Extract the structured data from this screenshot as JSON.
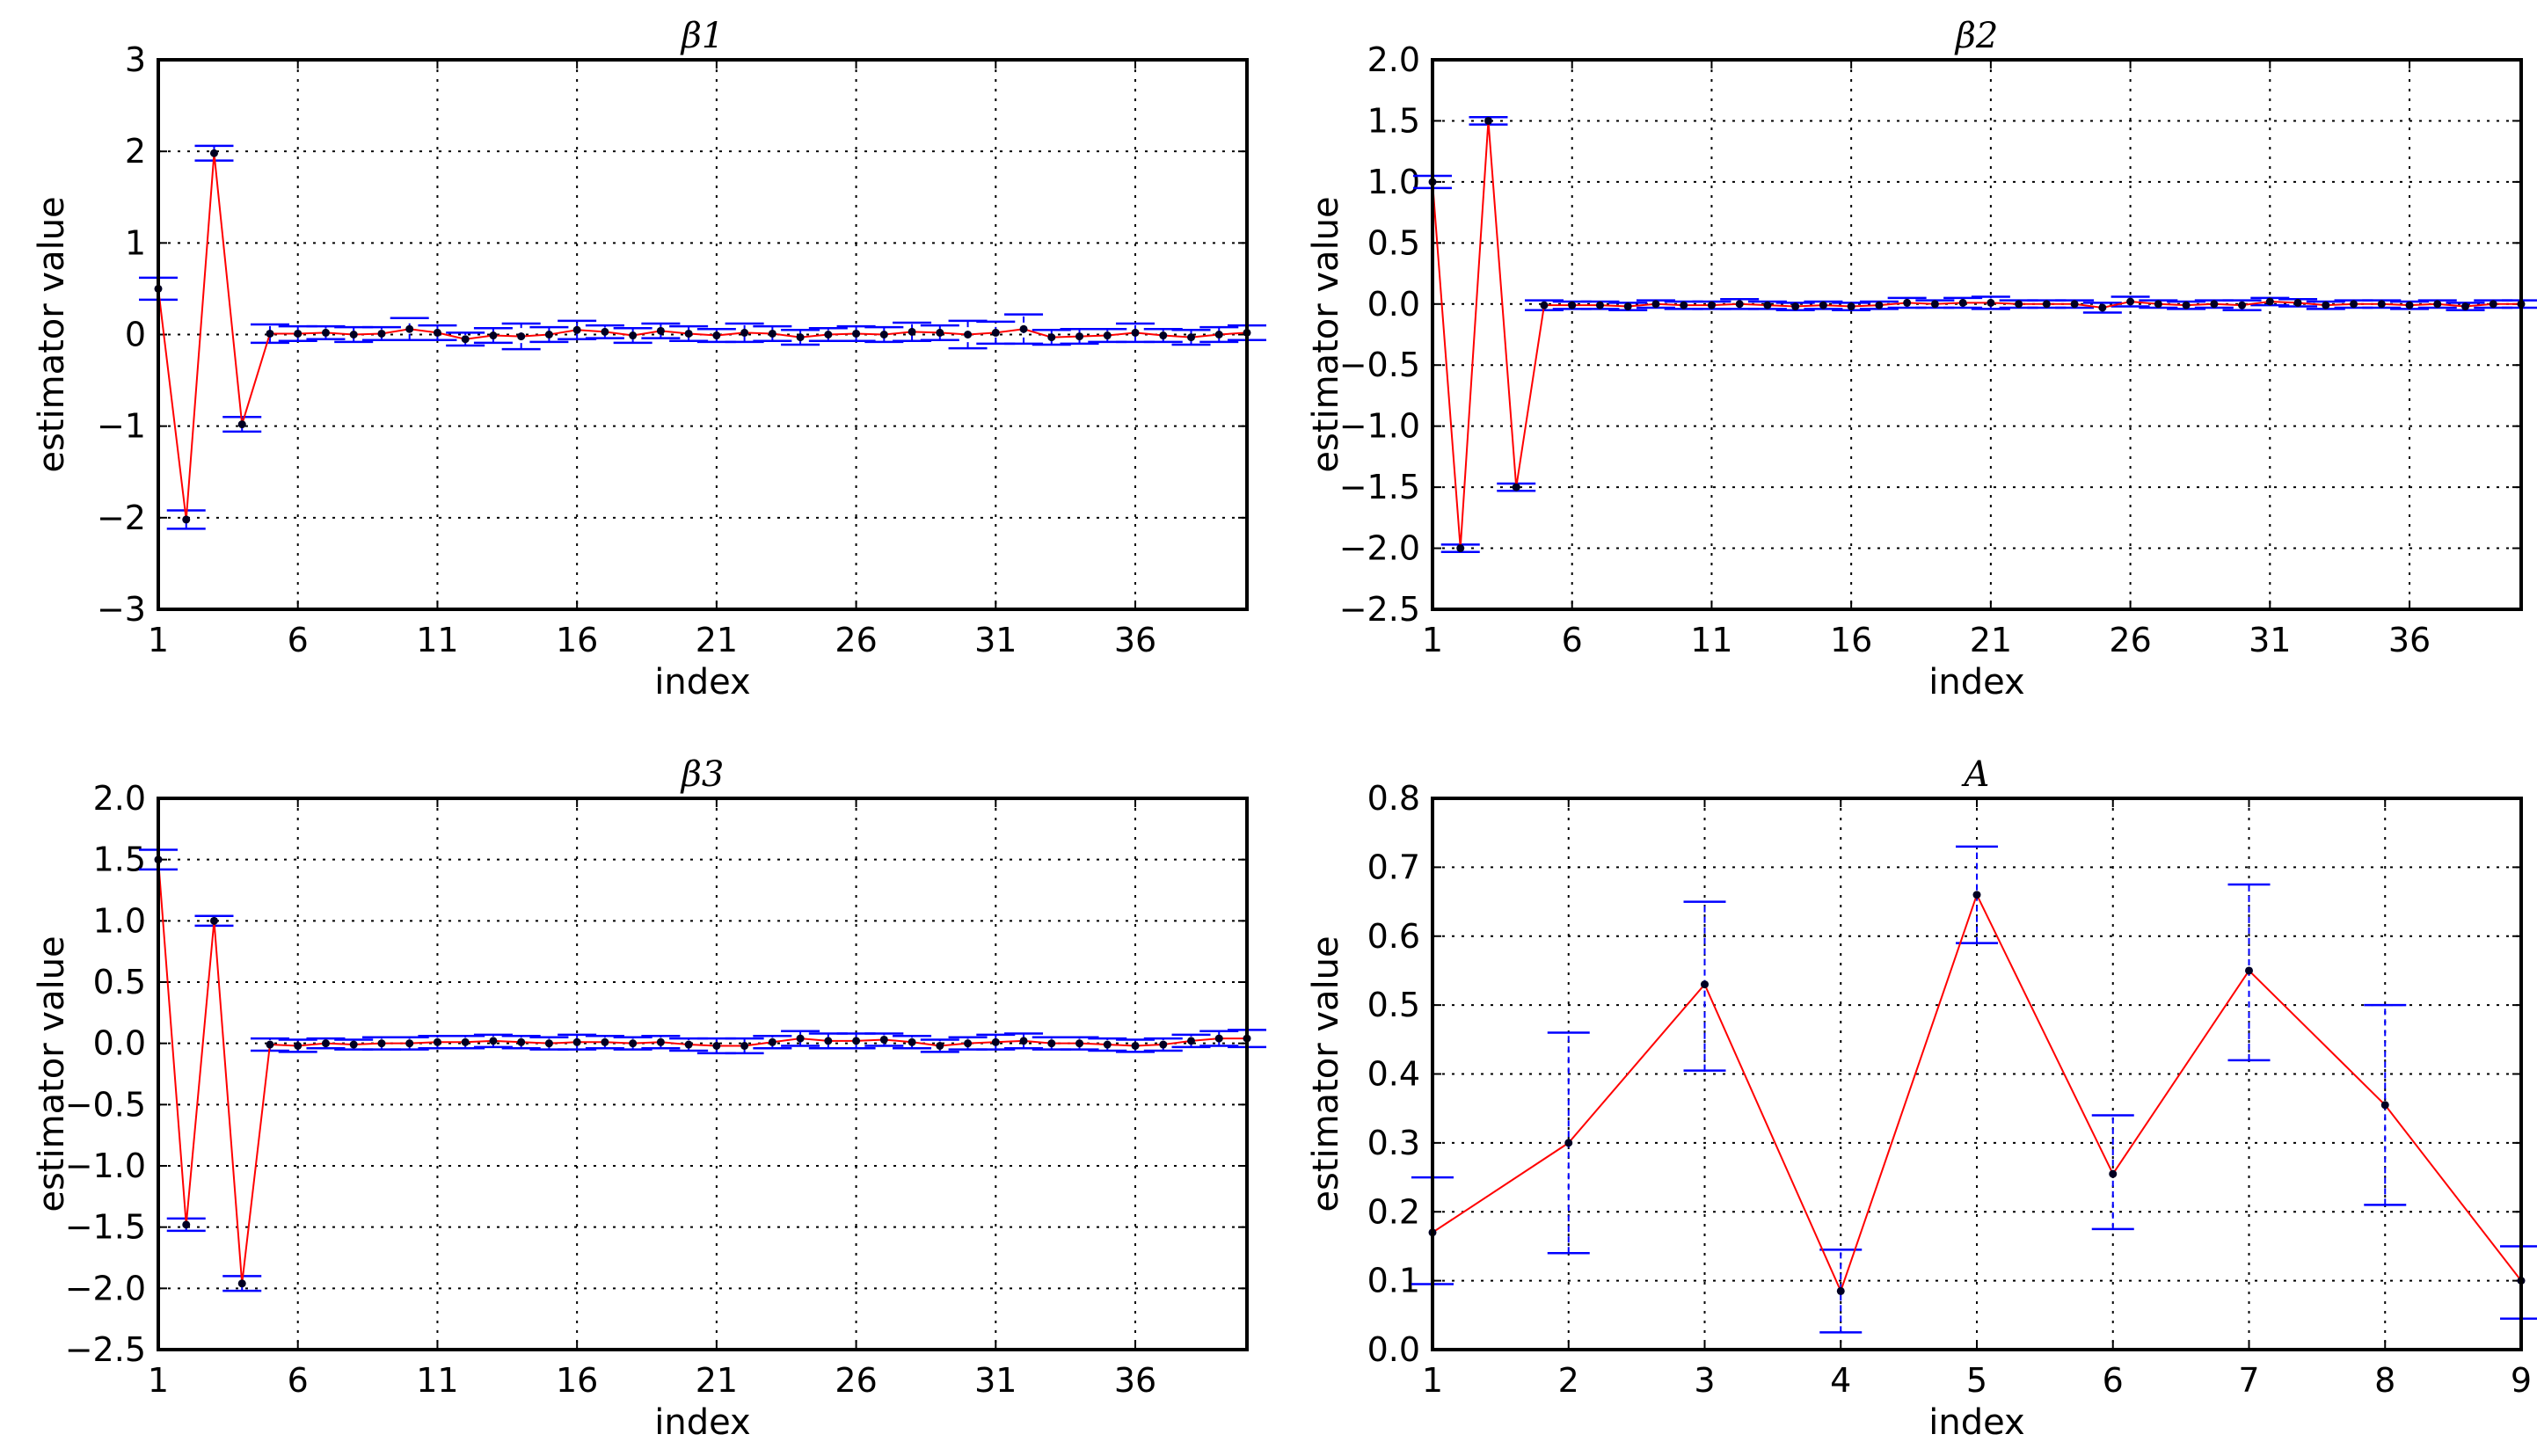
{
  "chart_data": [
    {
      "type": "line",
      "title": "β1",
      "xlabel": "index",
      "ylabel": "estimator value",
      "xlim": [
        1,
        40
      ],
      "ylim": [
        -3,
        3
      ],
      "xticks": [
        "1",
        "6",
        "11",
        "16",
        "21",
        "26",
        "31",
        "36"
      ],
      "yticks": [
        "-3",
        "-2",
        "-1",
        "0",
        "1",
        "2",
        "3"
      ],
      "grid": true,
      "x": [
        1,
        2,
        3,
        4,
        5,
        6,
        7,
        8,
        9,
        10,
        11,
        12,
        13,
        14,
        15,
        16,
        17,
        18,
        19,
        20,
        21,
        22,
        23,
        24,
        25,
        26,
        27,
        28,
        29,
        30,
        31,
        32,
        33,
        34,
        35,
        36,
        37,
        38,
        39,
        40
      ],
      "values": [
        0.5,
        -2.02,
        1.98,
        -0.98,
        0.01,
        0.01,
        0.02,
        0.0,
        0.01,
        0.06,
        0.02,
        -0.05,
        -0.01,
        -0.02,
        0.0,
        0.05,
        0.03,
        -0.01,
        0.04,
        0.01,
        -0.01,
        0.02,
        0.01,
        -0.03,
        0.0,
        0.01,
        0.0,
        0.03,
        0.02,
        0.0,
        0.02,
        0.06,
        -0.03,
        -0.02,
        -0.01,
        0.02,
        -0.01,
        -0.03,
        0.0,
        0.02
      ],
      "err": [
        0.12,
        0.1,
        0.08,
        0.08,
        0.1,
        0.08,
        0.07,
        0.08,
        0.07,
        0.12,
        0.08,
        0.07,
        0.08,
        0.14,
        0.08,
        0.1,
        0.07,
        0.08,
        0.08,
        0.08,
        0.07,
        0.1,
        0.08,
        0.08,
        0.07,
        0.08,
        0.08,
        0.1,
        0.08,
        0.15,
        0.12,
        0.16,
        0.08,
        0.08,
        0.07,
        0.1,
        0.07,
        0.08,
        0.08,
        0.08
      ]
    },
    {
      "type": "line",
      "title": "β2",
      "xlabel": "index",
      "ylabel": "estimator value",
      "xlim": [
        1,
        40
      ],
      "ylim": [
        -2.5,
        2.0
      ],
      "xticks": [
        "1",
        "6",
        "11",
        "16",
        "21",
        "26",
        "31",
        "36"
      ],
      "yticks": [
        "-2.5",
        "-2.0",
        "-1.5",
        "-1.0",
        "-0.5",
        "0.0",
        "0.5",
        "1.0",
        "1.5",
        "2.0"
      ],
      "grid": true,
      "x": [
        1,
        2,
        3,
        4,
        5,
        6,
        7,
        8,
        9,
        10,
        11,
        12,
        13,
        14,
        15,
        16,
        17,
        18,
        19,
        20,
        21,
        22,
        23,
        24,
        25,
        26,
        27,
        28,
        29,
        30,
        31,
        32,
        33,
        34,
        35,
        36,
        37,
        38,
        39,
        40
      ],
      "values": [
        1.0,
        -2.0,
        1.5,
        -1.5,
        -0.01,
        -0.01,
        -0.01,
        -0.02,
        0.0,
        -0.01,
        -0.01,
        0.0,
        -0.01,
        -0.02,
        -0.01,
        -0.02,
        -0.01,
        0.01,
        0.0,
        0.01,
        0.01,
        0.0,
        0.0,
        0.0,
        -0.03,
        0.02,
        0.0,
        -0.01,
        0.0,
        -0.01,
        0.02,
        0.01,
        -0.01,
        0.0,
        0.0,
        -0.01,
        0.0,
        -0.02,
        0.0,
        0.0
      ],
      "err": [
        0.05,
        0.03,
        0.03,
        0.03,
        0.04,
        0.03,
        0.03,
        0.03,
        0.03,
        0.03,
        0.03,
        0.04,
        0.03,
        0.03,
        0.03,
        0.03,
        0.03,
        0.04,
        0.03,
        0.04,
        0.05,
        0.03,
        0.03,
        0.03,
        0.04,
        0.04,
        0.03,
        0.03,
        0.03,
        0.04,
        0.03,
        0.03,
        0.03,
        0.03,
        0.03,
        0.03,
        0.03,
        0.03,
        0.03,
        0.03
      ]
    },
    {
      "type": "line",
      "title": "β3",
      "xlabel": "index",
      "ylabel": "estimator value",
      "xlim": [
        1,
        40
      ],
      "ylim": [
        -2.5,
        2.0
      ],
      "xticks": [
        "1",
        "6",
        "11",
        "16",
        "21",
        "26",
        "31",
        "36"
      ],
      "yticks": [
        "-2.5",
        "-2.0",
        "-1.5",
        "-1.0",
        "-0.5",
        "0.0",
        "0.5",
        "1.0",
        "1.5",
        "2.0"
      ],
      "grid": true,
      "x": [
        1,
        2,
        3,
        4,
        5,
        6,
        7,
        8,
        9,
        10,
        11,
        12,
        13,
        14,
        15,
        16,
        17,
        18,
        19,
        20,
        21,
        22,
        23,
        24,
        25,
        26,
        27,
        28,
        29,
        30,
        31,
        32,
        33,
        34,
        35,
        36,
        37,
        38,
        39,
        40
      ],
      "values": [
        1.5,
        -1.48,
        1.0,
        -1.96,
        -0.01,
        -0.02,
        0.0,
        -0.01,
        0.0,
        0.0,
        0.01,
        0.01,
        0.02,
        0.01,
        0.0,
        0.01,
        0.01,
        0.0,
        0.01,
        -0.01,
        -0.02,
        -0.02,
        0.01,
        0.04,
        0.02,
        0.02,
        0.03,
        0.01,
        -0.02,
        0.0,
        0.01,
        0.02,
        0.0,
        0.0,
        -0.01,
        -0.02,
        -0.01,
        0.02,
        0.04,
        0.04
      ],
      "err": [
        0.08,
        0.05,
        0.04,
        0.06,
        0.05,
        0.05,
        0.04,
        0.04,
        0.05,
        0.05,
        0.05,
        0.05,
        0.05,
        0.05,
        0.05,
        0.06,
        0.05,
        0.05,
        0.05,
        0.05,
        0.06,
        0.06,
        0.05,
        0.06,
        0.06,
        0.06,
        0.05,
        0.05,
        0.05,
        0.05,
        0.06,
        0.06,
        0.05,
        0.05,
        0.05,
        0.05,
        0.05,
        0.05,
        0.06,
        0.07
      ]
    },
    {
      "type": "line",
      "title": "A",
      "xlabel": "index",
      "ylabel": "estimator value",
      "xlim": [
        1,
        9
      ],
      "ylim": [
        0.0,
        0.8
      ],
      "xticks": [
        "1",
        "2",
        "3",
        "4",
        "5",
        "6",
        "7",
        "8",
        "9"
      ],
      "yticks": [
        "0.0",
        "0.1",
        "0.2",
        "0.3",
        "0.4",
        "0.5",
        "0.6",
        "0.7",
        "0.8"
      ],
      "grid": true,
      "x": [
        1,
        2,
        3,
        4,
        5,
        6,
        7,
        8,
        9
      ],
      "values": [
        0.17,
        0.3,
        0.53,
        0.085,
        0.66,
        0.255,
        0.55,
        0.355,
        0.1
      ],
      "err_low": [
        0.095,
        0.14,
        0.405,
        0.025,
        0.59,
        0.175,
        0.42,
        0.21,
        0.045
      ],
      "err_high": [
        0.25,
        0.46,
        0.65,
        0.145,
        0.73,
        0.34,
        0.675,
        0.5,
        0.15
      ]
    }
  ]
}
